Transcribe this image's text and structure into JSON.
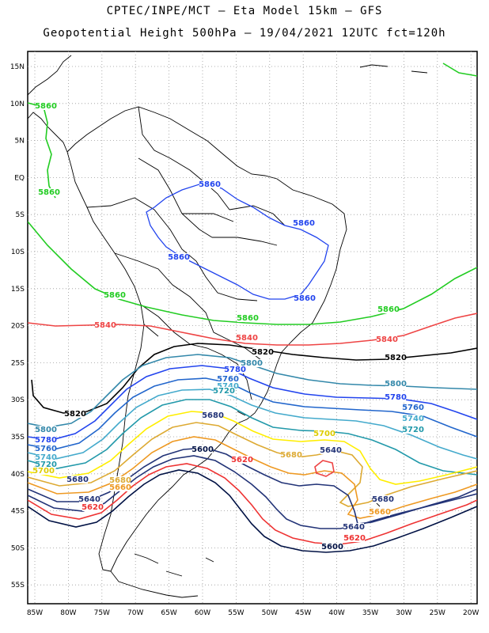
{
  "header": {
    "line1": "CPTEC/INPE/MCT –  Eta Model 15km – GFS",
    "line2": "Geopotential Height 500hPa – 19/04/2021 12UTC fct=120h"
  },
  "map": {
    "lat_labels": [
      "15N",
      "10N",
      "5N",
      "EQ",
      "5S",
      "10S",
      "15S",
      "20S",
      "25S",
      "30S",
      "35S",
      "40S",
      "45S",
      "50S",
      "55S"
    ],
    "lon_labels": [
      "85W",
      "80W",
      "75W",
      "70W",
      "65W",
      "60W",
      "55W",
      "50W",
      "45W",
      "40W",
      "35W",
      "30W",
      "25W",
      "20W"
    ],
    "contour_colors": {
      "5860": "#22cc22",
      "5840": "#ee4444",
      "5820": "#000000",
      "5800": "#3388aa",
      "5780": "#2244ee",
      "5760": "#2266cc",
      "5740": "#44aacc",
      "5720": "#2299aa",
      "5700": "#ffee00",
      "5680": "#ddaa33",
      "5660": "#ee9922",
      "5640": "#223377",
      "5620": "#ee3333",
      "5600": "#001144",
      "low": "#ee4444"
    },
    "contour_labels": [
      {
        "text": "5860",
        "color": "#22cc22"
      },
      {
        "text": "5860",
        "color": "#22cc22"
      },
      {
        "text": "5860",
        "color": "#22cc22"
      },
      {
        "text": "5860",
        "color": "#22cc22"
      },
      {
        "text": "5860",
        "color": "#22cc22"
      },
      {
        "text": "5860",
        "color": "#2244ee"
      },
      {
        "text": "5860",
        "color": "#2244ee"
      },
      {
        "text": "5860",
        "color": "#2244ee"
      },
      {
        "text": "5860",
        "color": "#2244ee"
      },
      {
        "text": "5840",
        "color": "#ee4444"
      },
      {
        "text": "5840",
        "color": "#ee4444"
      },
      {
        "text": "5840",
        "color": "#ee4444"
      },
      {
        "text": "5820",
        "color": "#000000"
      },
      {
        "text": "5820",
        "color": "#000000"
      },
      {
        "text": "5820",
        "color": "#000000"
      },
      {
        "text": "5800",
        "color": "#3388aa"
      },
      {
        "text": "5800",
        "color": "#3388aa"
      },
      {
        "text": "5800",
        "color": "#3388aa"
      },
      {
        "text": "5780",
        "color": "#2244ee"
      },
      {
        "text": "5780",
        "color": "#2244ee"
      },
      {
        "text": "5780",
        "color": "#2244ee"
      },
      {
        "text": "5760",
        "color": "#2266cc"
      },
      {
        "text": "5760",
        "color": "#2266cc"
      },
      {
        "text": "5760",
        "color": "#2266cc"
      },
      {
        "text": "5740",
        "color": "#44aacc"
      },
      {
        "text": "5740",
        "color": "#44aacc"
      },
      {
        "text": "5740",
        "color": "#44aacc"
      },
      {
        "text": "5720",
        "color": "#2299aa"
      },
      {
        "text": "5720",
        "color": "#2299aa"
      },
      {
        "text": "5720",
        "color": "#2299aa"
      },
      {
        "text": "5700",
        "color": "#ddcc00"
      },
      {
        "text": "5700",
        "color": "#ddcc00"
      },
      {
        "text": "5680",
        "color": "#ddaa33"
      },
      {
        "text": "5680",
        "color": "#ddaa33"
      },
      {
        "text": "5660",
        "color": "#ee9922"
      },
      {
        "text": "5660",
        "color": "#ee9922"
      },
      {
        "text": "5680",
        "color": "#223377"
      },
      {
        "text": "5680",
        "color": "#223377"
      },
      {
        "text": "5680",
        "color": "#223377"
      },
      {
        "text": "5640",
        "color": "#223377"
      },
      {
        "text": "5640",
        "color": "#223377"
      },
      {
        "text": "5640",
        "color": "#223377"
      },
      {
        "text": "5620",
        "color": "#ee3333"
      },
      {
        "text": "5620",
        "color": "#ee3333"
      },
      {
        "text": "5620",
        "color": "#ee3333"
      },
      {
        "text": "5600",
        "color": "#001144"
      },
      {
        "text": "5600",
        "color": "#001144"
      }
    ]
  }
}
